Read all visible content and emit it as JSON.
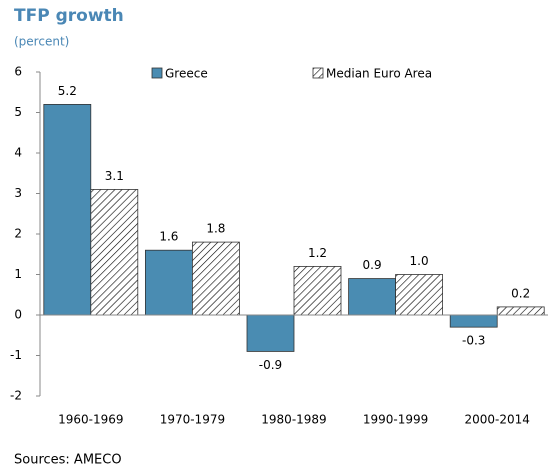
{
  "chart_data": {
    "type": "bar",
    "title": "TFP growth",
    "subtitle": "(percent)",
    "source": "Sources: AMECO",
    "categories": [
      "1960-1969",
      "1970-1979",
      "1980-1989",
      "1990-1999",
      "2000-2014"
    ],
    "series": [
      {
        "name": "Greece",
        "color": "#4a8cb2",
        "values": [
          5.2,
          1.6,
          -0.9,
          0.9,
          -0.3
        ],
        "value_labels": [
          "5.2",
          "1.6",
          "-0.9",
          "0.9",
          "-0.3"
        ]
      },
      {
        "name": "Median Euro Area",
        "color": "#000000",
        "hatch": true,
        "values": [
          3.1,
          1.8,
          1.2,
          1.0,
          0.2
        ],
        "value_labels": [
          "3.1",
          "1.8",
          "1.2",
          "1.0",
          "0.2"
        ]
      }
    ],
    "ylim": [
      -2,
      6
    ],
    "yticks": [
      -2,
      -1,
      0,
      1,
      2,
      3,
      4,
      5,
      6
    ],
    "grid": false
  }
}
